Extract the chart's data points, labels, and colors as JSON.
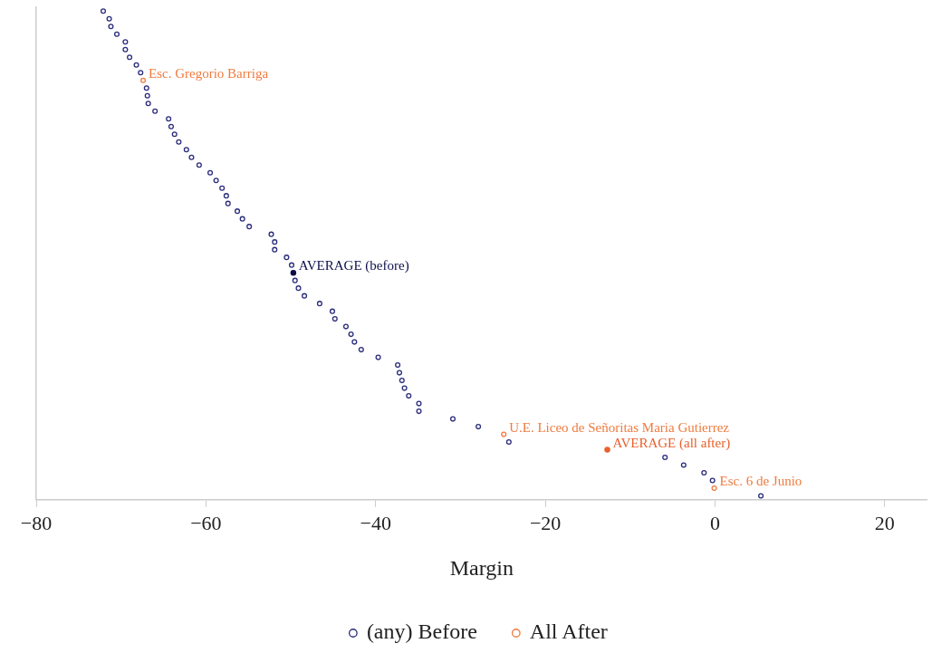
{
  "chart_data": {
    "type": "scatter",
    "orientation": "horizontal",
    "xlabel": "Margin",
    "xlim": [
      -80,
      25
    ],
    "xticks": [
      -80,
      -60,
      -40,
      -20,
      0,
      20
    ],
    "grid": false,
    "legend": "bottom",
    "marker": "circle",
    "categories": [
      null,
      null,
      null,
      null,
      null,
      null,
      null,
      null,
      null,
      null,
      null,
      null,
      null,
      null,
      null,
      null,
      null,
      null,
      null,
      null,
      null,
      null,
      null,
      null,
      null,
      null,
      null,
      null,
      null,
      null,
      null,
      null,
      null,
      null,
      null,
      null,
      null,
      null,
      null,
      null,
      null,
      null,
      null,
      null,
      null,
      null,
      null,
      null,
      null,
      null,
      null,
      null,
      null,
      null,
      null,
      null,
      null,
      null,
      null,
      null,
      null,
      null,
      null,
      null
    ],
    "series": [
      {
        "name": "(any) Before",
        "color": "#2b2d7c",
        "values": [
          -72.1,
          -71.4,
          -71.2,
          -70.5,
          -69.5,
          -69.5,
          -69.0,
          -68.2,
          -67.7,
          null,
          -67.0,
          -66.9,
          -66.8,
          -66.0,
          -64.4,
          -64.1,
          -63.7,
          -63.2,
          -62.3,
          -61.7,
          -60.8,
          -59.5,
          -58.8,
          -58.1,
          -57.6,
          -57.4,
          -56.3,
          -55.7,
          -54.9,
          -52.3,
          -51.9,
          -51.9,
          -50.5,
          -49.9,
          null,
          -49.5,
          -49.1,
          -48.4,
          -46.6,
          -45.1,
          -44.8,
          -43.5,
          -42.9,
          -42.5,
          -41.7,
          -39.7,
          -37.4,
          -37.2,
          -36.9,
          -36.6,
          -36.1,
          -34.9,
          -34.9,
          -30.9,
          -27.9,
          null,
          -24.3,
          null,
          -5.9,
          -3.7,
          -1.3,
          -0.3,
          null,
          5.4
        ]
      },
      {
        "name": "All After",
        "color": "#f07b3f",
        "values": [
          null,
          null,
          null,
          null,
          null,
          null,
          null,
          null,
          null,
          -67.4,
          null,
          null,
          null,
          null,
          null,
          null,
          null,
          null,
          null,
          null,
          null,
          null,
          null,
          null,
          null,
          null,
          null,
          null,
          null,
          null,
          null,
          null,
          null,
          null,
          null,
          null,
          null,
          null,
          null,
          null,
          null,
          null,
          null,
          null,
          null,
          null,
          null,
          null,
          null,
          null,
          null,
          null,
          null,
          null,
          null,
          -24.9,
          null,
          null,
          null,
          null,
          null,
          null,
          -0.1,
          null
        ],
        "value_labels": [
          null,
          null,
          null,
          null,
          null,
          null,
          null,
          null,
          null,
          "Esc. Gregorio Barriga",
          null,
          null,
          null,
          null,
          null,
          null,
          null,
          null,
          null,
          null,
          null,
          null,
          null,
          null,
          null,
          null,
          null,
          null,
          null,
          null,
          null,
          null,
          null,
          null,
          null,
          null,
          null,
          null,
          null,
          null,
          null,
          null,
          null,
          null,
          null,
          null,
          null,
          null,
          null,
          null,
          null,
          null,
          null,
          null,
          null,
          "U.E. Liceo de Señoritas Maria Gutierrez",
          null,
          null,
          null,
          null,
          null,
          null,
          "Esc. 6 de Junio",
          null
        ]
      },
      {
        "color": "#0d0f4a",
        "values": [
          null,
          null,
          null,
          null,
          null,
          null,
          null,
          null,
          null,
          null,
          null,
          null,
          null,
          null,
          null,
          null,
          null,
          null,
          null,
          null,
          null,
          null,
          null,
          null,
          null,
          null,
          null,
          null,
          null,
          null,
          null,
          null,
          null,
          null,
          -49.7,
          null,
          null,
          null,
          null,
          null,
          null,
          null,
          null,
          null,
          null,
          null,
          null,
          null,
          null,
          null,
          null,
          null,
          null,
          null,
          null,
          null,
          null,
          null,
          null,
          null,
          null,
          null,
          null,
          null
        ],
        "value_labels": [
          null,
          null,
          null,
          null,
          null,
          null,
          null,
          null,
          null,
          null,
          null,
          null,
          null,
          null,
          null,
          null,
          null,
          null,
          null,
          null,
          null,
          null,
          null,
          null,
          null,
          null,
          null,
          null,
          null,
          null,
          null,
          null,
          null,
          null,
          "AVERAGE (before)",
          null,
          null,
          null,
          null,
          null,
          null,
          null,
          null,
          null,
          null,
          null,
          null,
          null,
          null,
          null,
          null,
          null,
          null,
          null,
          null,
          null,
          null,
          null,
          null,
          null,
          null,
          null,
          null,
          null
        ]
      },
      {
        "color": "#e8602c",
        "values": [
          null,
          null,
          null,
          null,
          null,
          null,
          null,
          null,
          null,
          null,
          null,
          null,
          null,
          null,
          null,
          null,
          null,
          null,
          null,
          null,
          null,
          null,
          null,
          null,
          null,
          null,
          null,
          null,
          null,
          null,
          null,
          null,
          null,
          null,
          null,
          null,
          null,
          null,
          null,
          null,
          null,
          null,
          null,
          null,
          null,
          null,
          null,
          null,
          null,
          null,
          null,
          null,
          null,
          null,
          null,
          null,
          null,
          -12.7,
          null,
          null,
          null,
          null,
          null,
          null
        ],
        "value_labels": [
          null,
          null,
          null,
          null,
          null,
          null,
          null,
          null,
          null,
          null,
          null,
          null,
          null,
          null,
          null,
          null,
          null,
          null,
          null,
          null,
          null,
          null,
          null,
          null,
          null,
          null,
          null,
          null,
          null,
          null,
          null,
          null,
          null,
          null,
          null,
          null,
          null,
          null,
          null,
          null,
          null,
          null,
          null,
          null,
          null,
          null,
          null,
          null,
          null,
          null,
          null,
          null,
          null,
          null,
          null,
          null,
          null,
          "AVERAGE (all after)",
          null,
          null,
          null,
          null,
          null,
          null
        ]
      }
    ]
  }
}
